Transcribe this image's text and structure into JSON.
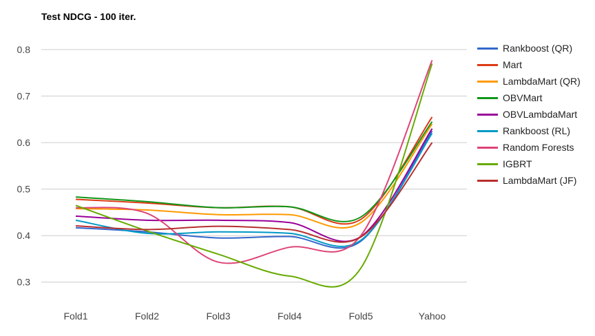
{
  "chart_data": {
    "type": "line",
    "title": "Test NDCG - 100 iter.",
    "xlabel": "",
    "ylabel": "",
    "categories": [
      "Fold1",
      "Fold2",
      "Fold3",
      "Fold4",
      "Fold5",
      "Yahoo"
    ],
    "ylim": [
      0.27,
      0.84
    ],
    "yticks": [
      "0.3",
      "0.4",
      "0.5",
      "0.6",
      "0.7",
      "0.8"
    ],
    "grid": true,
    "legend_position": "right",
    "smooth": true,
    "series": [
      {
        "name": "Rankboost (QR)",
        "color": "#3366cc",
        "values": [
          0.417,
          0.408,
          0.395,
          0.398,
          0.388,
          0.625
        ]
      },
      {
        "name": "Mart",
        "color": "#dc3912",
        "values": [
          0.478,
          0.47,
          0.46,
          0.462,
          0.435,
          0.655
        ]
      },
      {
        "name": "LambdaMart (QR)",
        "color": "#ff9900",
        "values": [
          0.458,
          0.455,
          0.445,
          0.445,
          0.428,
          0.64
        ]
      },
      {
        "name": "OBVMart",
        "color": "#109618",
        "values": [
          0.483,
          0.473,
          0.46,
          0.462,
          0.44,
          0.645
        ]
      },
      {
        "name": "OBVLambdaMart",
        "color": "#990099",
        "values": [
          0.442,
          0.433,
          0.433,
          0.428,
          0.398,
          0.63
        ]
      },
      {
        "name": "Rankboost (RL)",
        "color": "#0099c6",
        "values": [
          0.433,
          0.405,
          0.408,
          0.405,
          0.39,
          0.62
        ]
      },
      {
        "name": "Random Forests",
        "color": "#dd4477",
        "values": [
          0.46,
          0.448,
          0.343,
          0.375,
          0.4,
          0.777
        ]
      },
      {
        "name": "IGBRT",
        "color": "#66aa00",
        "values": [
          0.465,
          0.41,
          0.36,
          0.313,
          0.33,
          0.77
        ]
      },
      {
        "name": "LambdaMart (JF)",
        "color": "#b82e2e",
        "values": [
          0.421,
          0.413,
          0.42,
          0.413,
          0.397,
          0.6
        ]
      }
    ]
  }
}
